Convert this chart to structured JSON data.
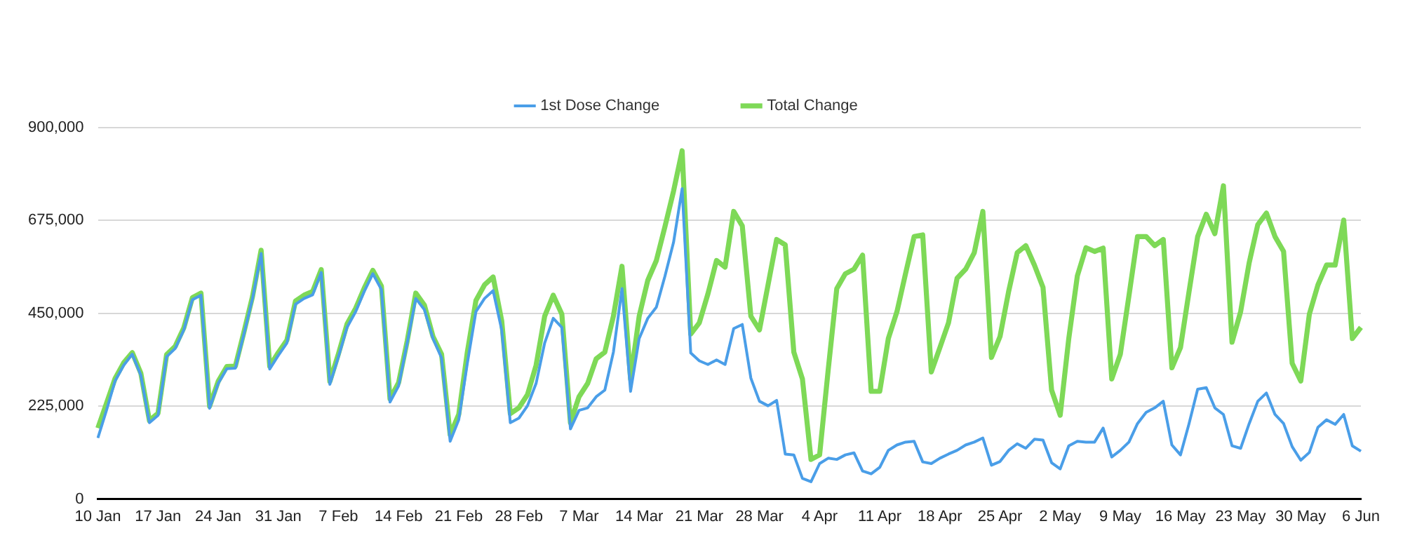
{
  "chart_data": {
    "type": "line",
    "categories": [
      "10 Jan",
      null,
      null,
      null,
      null,
      null,
      null,
      "17 Jan",
      null,
      null,
      null,
      null,
      null,
      null,
      "24 Jan",
      null,
      null,
      null,
      null,
      null,
      null,
      "31 Jan",
      null,
      null,
      null,
      null,
      null,
      null,
      "7 Feb",
      null,
      null,
      null,
      null,
      null,
      null,
      "14 Feb",
      null,
      null,
      null,
      null,
      null,
      null,
      "21 Feb",
      null,
      null,
      null,
      null,
      null,
      null,
      "28 Feb",
      null,
      null,
      null,
      null,
      null,
      null,
      "7 Mar",
      null,
      null,
      null,
      null,
      null,
      null,
      "14 Mar",
      null,
      null,
      null,
      null,
      null,
      null,
      "21 Mar",
      null,
      null,
      null,
      null,
      null,
      null,
      "28 Mar",
      null,
      null,
      null,
      null,
      null,
      null,
      "4 Apr",
      null,
      null,
      null,
      null,
      null,
      null,
      "11 Apr",
      null,
      null,
      null,
      null,
      null,
      null,
      "18 Apr",
      null,
      null,
      null,
      null,
      null,
      null,
      "25 Apr",
      null,
      null,
      null,
      null,
      null,
      null,
      "2 May",
      null,
      null,
      null,
      null,
      null,
      null,
      "9 May",
      null,
      null,
      null,
      null,
      null,
      null,
      "16 May",
      null,
      null,
      null,
      null,
      null,
      null,
      "23 May",
      null,
      null,
      null,
      null,
      null,
      null,
      "30 May",
      null,
      null,
      null,
      null,
      null,
      null,
      "6 Jun"
    ],
    "series": [
      {
        "name": "1st Dose Change",
        "color": "#4a9ee8",
        "values": [
          148000,
          215000,
          286000,
          324000,
          351000,
          300000,
          185000,
          203000,
          345000,
          365000,
          410000,
          483000,
          494000,
          220000,
          280000,
          316000,
          317000,
          400000,
          486000,
          595000,
          315000,
          348000,
          378000,
          472000,
          486000,
          495000,
          549000,
          278000,
          345000,
          416000,
          454000,
          503000,
          546000,
          508000,
          235000,
          274000,
          378000,
          486000,
          459000,
          389000,
          342000,
          140000,
          192000,
          329000,
          454000,
          486000,
          505000,
          410000,
          185000,
          196000,
          226000,
          280000,
          378000,
          438000,
          416000,
          170000,
          215000,
          221000,
          248000,
          264000,
          356000,
          510000,
          261000,
          389000,
          438000,
          465000,
          540000,
          622000,
          752000,
          354000,
          335000,
          326000,
          337000,
          326000,
          413000,
          423000,
          293000,
          237000,
          226000,
          239000,
          109000,
          107000,
          50000,
          42000,
          86000,
          99000,
          96000,
          107000,
          112000,
          68000,
          61000,
          77000,
          118000,
          131000,
          138000,
          140000,
          90000,
          86000,
          99000,
          109000,
          118000,
          131000,
          138000,
          148000,
          82000,
          91000,
          118000,
          134000,
          123000,
          145000,
          143000,
          88000,
          73000,
          129000,
          140000,
          138000,
          138000,
          172000,
          102000,
          118000,
          138000,
          183000,
          210000,
          221000,
          237000,
          131000,
          107000,
          183000,
          266000,
          270000,
          221000,
          205000,
          129000,
          123000,
          183000,
          237000,
          257000,
          205000,
          183000,
          127000,
          94000,
          113000,
          174000,
          192000,
          181000,
          205000,
          129000,
          116000
        ]
      },
      {
        "name": "Total Change",
        "color": "#7ed957",
        "values": [
          172000,
          232000,
          292000,
          330000,
          355000,
          305000,
          190000,
          208000,
          350000,
          370000,
          415000,
          488000,
          499000,
          225000,
          285000,
          321000,
          322000,
          405000,
          491000,
          603000,
          322000,
          355000,
          385000,
          480000,
          494000,
          503000,
          556000,
          285000,
          352000,
          424000,
          462000,
          511000,
          554000,
          516000,
          243000,
          282000,
          383000,
          499000,
          470000,
          394000,
          351000,
          156000,
          205000,
          356000,
          481000,
          519000,
          538000,
          432000,
          207000,
          221000,
          253000,
          324000,
          443000,
          494000,
          448000,
          185000,
          248000,
          280000,
          340000,
          356000,
          443000,
          564000,
          291000,
          443000,
          530000,
          578000,
          660000,
          746000,
          844000,
          400000,
          427000,
          497000,
          578000,
          562000,
          697000,
          662000,
          443000,
          410000,
          519000,
          629000,
          616000,
          356000,
          291000,
          96000,
          107000,
          313000,
          510000,
          546000,
          557000,
          591000,
          261000,
          261000,
          389000,
          454000,
          546000,
          636000,
          640000,
          308000,
          367000,
          427000,
          535000,
          557000,
          597000,
          697000,
          343000,
          394000,
          503000,
          597000,
          614000,
          567000,
          513000,
          264000,
          203000,
          389000,
          541000,
          609000,
          600000,
          608000,
          291000,
          351000,
          492000,
          636000,
          636000,
          614000,
          629000,
          318000,
          367000,
          503000,
          636000,
          690000,
          643000,
          759000,
          380000,
          454000,
          573000,
          665000,
          693000,
          636000,
          600000,
          329000,
          286000,
          448000,
          519000,
          567000,
          567000,
          676000,
          389000,
          416000
        ]
      }
    ],
    "ylim": [
      0,
      900000
    ],
    "yticks": [
      0,
      {
        "value": 225000,
        "label": "225,000"
      },
      {
        "value": 450000,
        "label": "450,000"
      },
      {
        "value": 675000,
        "label": "675,000"
      },
      {
        "value": 900000,
        "label": "900,000"
      }
    ],
    "grid": "y",
    "legend": "top"
  }
}
